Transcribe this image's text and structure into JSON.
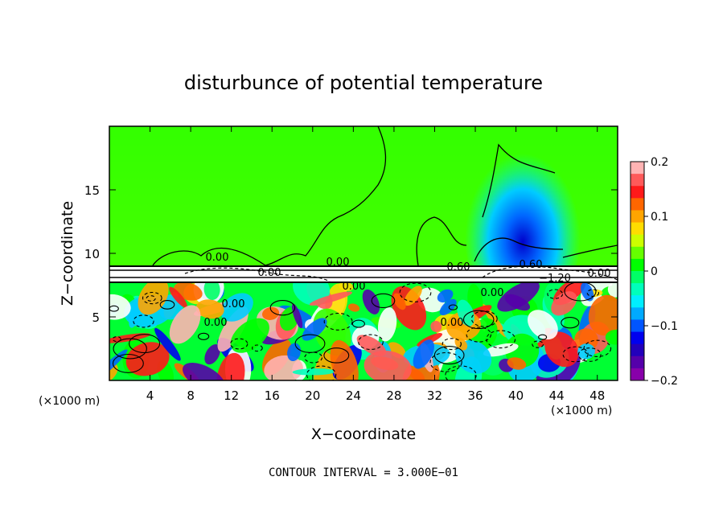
{
  "chart_data": {
    "type": "heatmap",
    "title": "disturbunce of potential temperature",
    "xlabel": "X−coordinate",
    "ylabel": "Z−coordinate",
    "x_unit": "(×1000 m)",
    "x_unit_right": "(×1000 m)",
    "xlim": [
      0,
      50
    ],
    "ylim": [
      0,
      20
    ],
    "x_ticks": [
      4,
      8,
      12,
      16,
      20,
      24,
      28,
      32,
      36,
      40,
      44,
      48
    ],
    "y_ticks": [
      5,
      10,
      15
    ],
    "colorbar": {
      "range": [
        -0.2,
        0.2
      ],
      "tick_values": [
        0.2,
        0.1,
        0,
        -0.1,
        -0.2
      ],
      "tick_labels": [
        "0.2",
        "0.1",
        "0",
        "−0.1",
        "−0.2"
      ],
      "colors": [
        "#ffb3b3",
        "#ff5a5a",
        "#ff1a1a",
        "#ff6600",
        "#ffa500",
        "#ffdd00",
        "#ccff00",
        "#66ff00",
        "#00ff00",
        "#00ff66",
        "#00ffbb",
        "#00eeff",
        "#00aaff",
        "#0055ff",
        "#0000ee",
        "#2200bb",
        "#5500aa",
        "#8800aa"
      ]
    },
    "contour_labels": [
      "0.00",
      "0.00",
      "0.00",
      "0.00",
      "0.00",
      "0.00",
      "0.00",
      "0.00",
      "0.60",
      "0.60",
      "−1.20",
      "0.00"
    ],
    "footnote": "CONTOUR INTERVAL = 3.000E−01",
    "grid": false
  }
}
